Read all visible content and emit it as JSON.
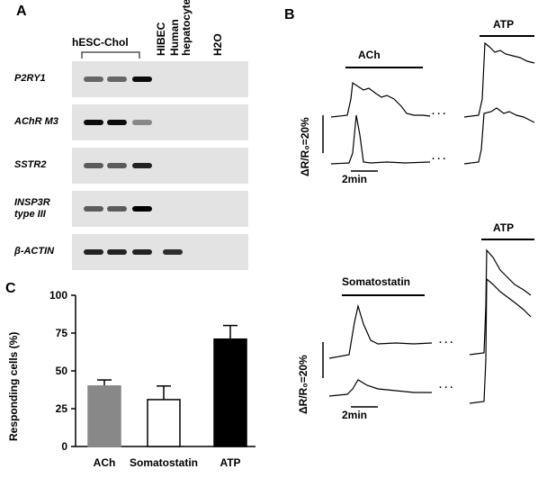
{
  "panel_A": {
    "letter": "A",
    "lane_group_label": "hESC-Chol",
    "lanes": [
      "HIBEC",
      "Human hepatocyte",
      "H2O"
    ],
    "genes": [
      {
        "name": "P2RY1",
        "bands": [
          0.55,
          0.55,
          0.95,
          0,
          0
        ]
      },
      {
        "name": "AChR M3",
        "bands": [
          0.95,
          0.95,
          0.4,
          0,
          0
        ]
      },
      {
        "name": "SSTR2",
        "bands": [
          0.6,
          0.6,
          0.85,
          0,
          0
        ]
      },
      {
        "name": "INSP3R type III",
        "bands": [
          0.6,
          0.6,
          1.0,
          0,
          0
        ]
      },
      {
        "name": "β-ACTIN",
        "bands": [
          0.85,
          0.85,
          0.85,
          0.8,
          0
        ]
      }
    ]
  },
  "panel_B": {
    "letter": "B",
    "top": {
      "stimulus1": "ACh",
      "stimulus2": "ATP",
      "ylabel": "ΔR/R₀=20%",
      "scalebar": "2min",
      "gap": ". . ."
    },
    "bottom": {
      "stimulus1": "Somatostatin",
      "stimulus2": "ATP",
      "ylabel": "ΔR/R₀=20%",
      "scalebar": "2min",
      "gap": ". . ."
    }
  },
  "chart_data": {
    "type": "bar",
    "title": "",
    "ylabel": "Responding cells (%)",
    "xlabel": "",
    "categories": [
      "ACh",
      "Somatostatin",
      "ATP"
    ],
    "values": [
      40,
      31,
      71
    ],
    "errors": [
      4,
      9,
      9
    ],
    "colors": [
      "#888888",
      "#ffffff",
      "#000000"
    ],
    "ylim": [
      0,
      100
    ],
    "yticks": [
      0,
      25,
      50,
      75,
      100
    ]
  },
  "panel_C": {
    "letter": "C"
  }
}
